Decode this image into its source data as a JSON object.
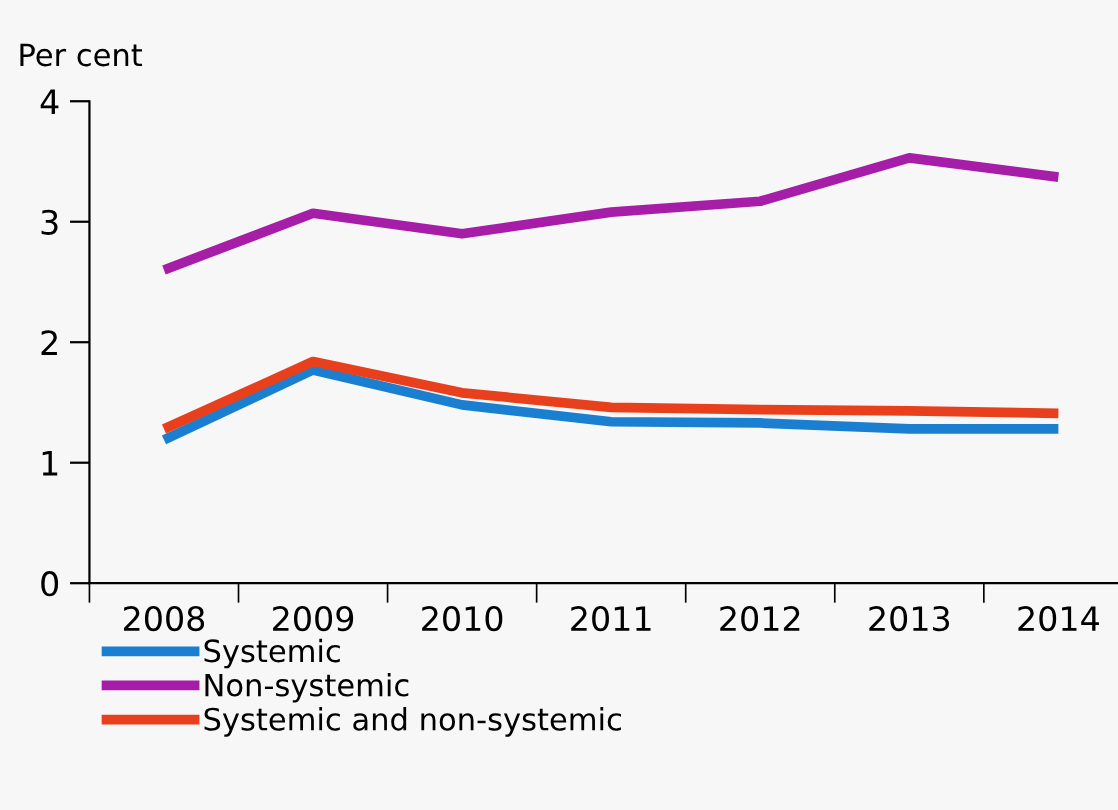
{
  "chart_data": {
    "type": "line",
    "ylabel": "Per cent",
    "categories": [
      "2008",
      "2009",
      "2010",
      "2011",
      "2012",
      "2013",
      "2014"
    ],
    "series": [
      {
        "name": "Systemic",
        "color": "#1a7fd0",
        "values": [
          1.19,
          1.77,
          1.48,
          1.34,
          1.33,
          1.28,
          1.28
        ]
      },
      {
        "name": "Non-systemic",
        "color": "#a61ea8",
        "values": [
          2.6,
          3.07,
          2.9,
          3.08,
          3.17,
          3.53,
          3.37
        ]
      },
      {
        "name": "Systemic and non-systemic",
        "color": "#e8401c",
        "values": [
          1.28,
          1.84,
          1.58,
          1.46,
          1.44,
          1.43,
          1.41
        ]
      }
    ],
    "ylim": [
      0,
      4
    ],
    "yticks": [
      0,
      1,
      2,
      3,
      4
    ],
    "grid": false,
    "legend": "bottom",
    "marker": "none",
    "line_style": "solid"
  }
}
